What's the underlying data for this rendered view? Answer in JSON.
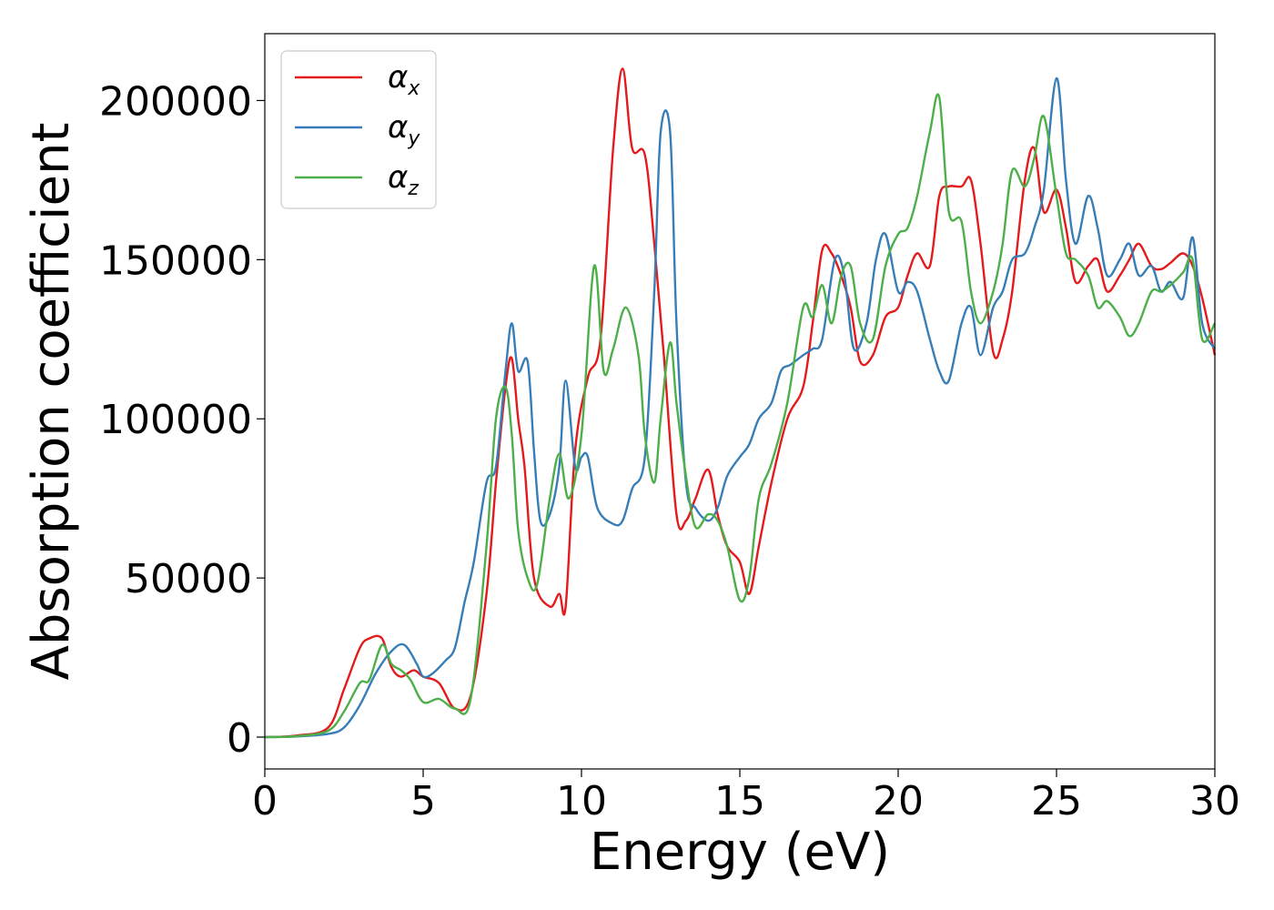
{
  "chart_data": {
    "type": "line",
    "xlabel": "Energy (eV)",
    "ylabel": "Absorption coefficient",
    "xlim": [
      0,
      30
    ],
    "ylim": [
      -10000,
      221000
    ],
    "xticks": [
      0,
      5,
      10,
      15,
      20,
      25,
      30
    ],
    "yticks": [
      0,
      50000,
      100000,
      150000,
      200000
    ],
    "legend_position": "top-left",
    "grid": false,
    "series": [
      {
        "name": "α",
        "subscript": "x",
        "color": "#e41a1c",
        "x": [
          0,
          1,
          2,
          2.5,
          3,
          3.3,
          3.7,
          4.0,
          4.3,
          4.7,
          5.0,
          5.5,
          6.0,
          6.5,
          7.0,
          7.3,
          7.6,
          7.8,
          8.0,
          8.2,
          8.5,
          9.0,
          9.3,
          9.5,
          9.8,
          10.2,
          10.6,
          11.0,
          11.3,
          11.6,
          12.0,
          12.3,
          12.6,
          13.0,
          13.3,
          13.6,
          14.0,
          14.3,
          14.6,
          15.0,
          15.3,
          15.6,
          16.0,
          16.5,
          17.0,
          17.3,
          17.6,
          17.9,
          18.2,
          18.5,
          18.8,
          19.2,
          19.6,
          20.0,
          20.3,
          20.6,
          21.0,
          21.3,
          21.6,
          22.0,
          22.3,
          22.6,
          23.0,
          23.3,
          23.6,
          24.0,
          24.3,
          24.6,
          25.0,
          25.3,
          25.6,
          26.0,
          26.3,
          26.6,
          27.0,
          27.3,
          27.6,
          28.0,
          28.3,
          28.6,
          29.0,
          29.3,
          29.6,
          30.0
        ],
        "y": [
          0,
          500,
          3000,
          15000,
          28000,
          31000,
          31000,
          22000,
          19000,
          21000,
          19000,
          17000,
          9000,
          13000,
          45000,
          80000,
          110000,
          119000,
          100000,
          85000,
          50000,
          41000,
          45000,
          41000,
          90000,
          113000,
          125000,
          185000,
          210000,
          185000,
          183000,
          155000,
          120000,
          70000,
          68000,
          75000,
          84000,
          70000,
          60000,
          55000,
          45000,
          60000,
          80000,
          100000,
          110000,
          130000,
          153000,
          152000,
          145000,
          135000,
          118000,
          120000,
          132000,
          135000,
          145000,
          152000,
          148000,
          170000,
          173000,
          173000,
          175000,
          155000,
          121000,
          125000,
          140000,
          175000,
          185000,
          165000,
          172000,
          160000,
          143000,
          148000,
          150000,
          140000,
          145000,
          150000,
          155000,
          148000,
          147000,
          149000,
          152000,
          148000,
          138000,
          120000
        ]
      },
      {
        "name": "α",
        "subscript": "y",
        "color": "#377eb8",
        "x": [
          0,
          1,
          2,
          2.5,
          3,
          3.5,
          4.0,
          4.4,
          4.8,
          5.0,
          5.3,
          5.7,
          6.0,
          6.3,
          6.6,
          7.0,
          7.3,
          7.6,
          7.8,
          8.0,
          8.3,
          8.5,
          8.7,
          9.0,
          9.3,
          9.5,
          9.8,
          10.0,
          10.2,
          10.5,
          11.0,
          11.3,
          11.6,
          12.0,
          12.3,
          12.5,
          12.8,
          13.0,
          13.3,
          13.6,
          14.0,
          14.3,
          14.6,
          15.0,
          15.3,
          15.6,
          16.0,
          16.3,
          16.6,
          17.0,
          17.3,
          17.6,
          18.0,
          18.3,
          18.6,
          19.0,
          19.3,
          19.6,
          20.0,
          20.3,
          20.6,
          21.0,
          21.3,
          21.6,
          22.0,
          22.3,
          22.6,
          23.0,
          23.3,
          23.6,
          24.0,
          24.3,
          24.6,
          25.0,
          25.3,
          25.6,
          26.0,
          26.3,
          26.6,
          27.0,
          27.3,
          27.6,
          28.0,
          28.3,
          28.6,
          29.0,
          29.3,
          29.6,
          30.0
        ],
        "y": [
          0,
          200,
          1000,
          3000,
          10000,
          20000,
          27000,
          29000,
          23000,
          19000,
          20000,
          24000,
          28000,
          42000,
          55000,
          80000,
          85000,
          115000,
          130000,
          115000,
          118000,
          90000,
          68000,
          70000,
          85000,
          112000,
          85000,
          88000,
          88000,
          72000,
          67000,
          68000,
          78000,
          88000,
          140000,
          190000,
          190000,
          130000,
          80000,
          72000,
          68000,
          72000,
          82000,
          88000,
          92000,
          100000,
          105000,
          115000,
          117000,
          120000,
          122000,
          125000,
          150000,
          145000,
          122000,
          130000,
          150000,
          158000,
          140000,
          143000,
          140000,
          125000,
          115000,
          112000,
          130000,
          135000,
          120000,
          135000,
          140000,
          150000,
          152000,
          160000,
          172000,
          207000,
          175000,
          155000,
          170000,
          160000,
          145000,
          150000,
          155000,
          145000,
          148000,
          140000,
          143000,
          138000,
          157000,
          130000,
          122000
        ]
      },
      {
        "name": "α",
        "subscript": "z",
        "color": "#4daf4a",
        "x": [
          0,
          1,
          2,
          2.5,
          3,
          3.3,
          3.7,
          4.0,
          4.3,
          4.6,
          5.0,
          5.5,
          6.0,
          6.5,
          7.0,
          7.3,
          7.6,
          7.8,
          8.0,
          8.3,
          8.6,
          9.0,
          9.3,
          9.6,
          10.0,
          10.4,
          10.7,
          11.0,
          11.4,
          11.8,
          12.0,
          12.3,
          12.5,
          12.8,
          13.0,
          13.3,
          13.6,
          14.0,
          14.3,
          14.6,
          15.0,
          15.3,
          15.6,
          16.0,
          16.5,
          17.0,
          17.3,
          17.6,
          17.9,
          18.2,
          18.5,
          18.8,
          19.2,
          19.6,
          20.0,
          20.3,
          20.6,
          21.0,
          21.3,
          21.6,
          22.0,
          22.3,
          22.6,
          23.0,
          23.3,
          23.6,
          24.0,
          24.3,
          24.6,
          25.0,
          25.3,
          25.6,
          26.0,
          26.3,
          26.6,
          27.0,
          27.3,
          27.6,
          28.0,
          28.3,
          28.6,
          29.0,
          29.3,
          29.6,
          30.0
        ],
        "y": [
          0,
          300,
          2000,
          8000,
          17000,
          18000,
          29000,
          23000,
          21000,
          18000,
          11000,
          12000,
          9000,
          12000,
          60000,
          100000,
          110000,
          95000,
          65000,
          50000,
          48000,
          75000,
          89000,
          75000,
          95000,
          148000,
          115000,
          122000,
          135000,
          120000,
          95000,
          80000,
          100000,
          124000,
          105000,
          82000,
          66000,
          70000,
          68000,
          60000,
          43000,
          50000,
          75000,
          86000,
          105000,
          135000,
          132000,
          142000,
          130000,
          145000,
          148000,
          130000,
          125000,
          148000,
          158000,
          160000,
          170000,
          190000,
          201000,
          165000,
          162000,
          140000,
          130000,
          140000,
          155000,
          178000,
          173000,
          182000,
          195000,
          170000,
          152000,
          150000,
          145000,
          135000,
          137000,
          132000,
          126000,
          130000,
          140000,
          140000,
          142000,
          146000,
          150000,
          125000,
          130000
        ]
      }
    ]
  }
}
